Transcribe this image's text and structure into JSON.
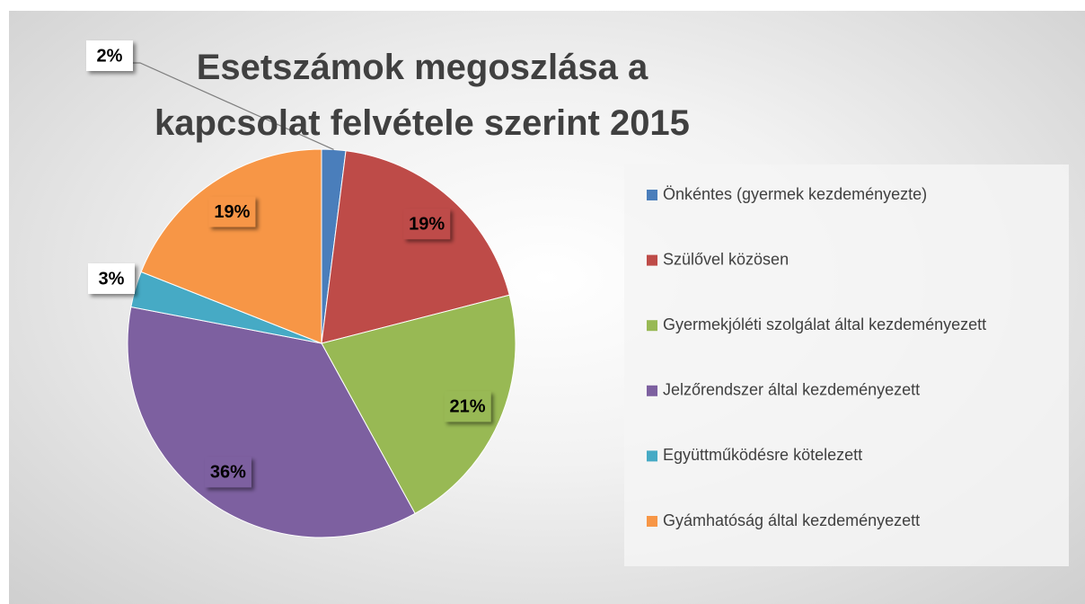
{
  "chart_data": {
    "type": "pie",
    "title": "Esetszámok megoszlása a kapcsolat felvétele szerint 2015",
    "categories": [
      "Önkéntes (gyermek kezdeményezte)",
      "Szülővel közösen",
      "Gyermekjóléti szolgálat által kezdeményezett",
      "Jelzőrendszer által kezdeményezett",
      "Együttműködésre kötelezett",
      "Gyámhatóság által kezdeményezett"
    ],
    "values": [
      2,
      19,
      21,
      36,
      3,
      19
    ],
    "value_labels": [
      "2%",
      "19%",
      "21%",
      "36%",
      "3%",
      "19%"
    ],
    "colors": [
      "#4a7ebb",
      "#be4b48",
      "#98b954",
      "#7d60a0",
      "#46aac5",
      "#f79646"
    ],
    "legend": "right"
  }
}
